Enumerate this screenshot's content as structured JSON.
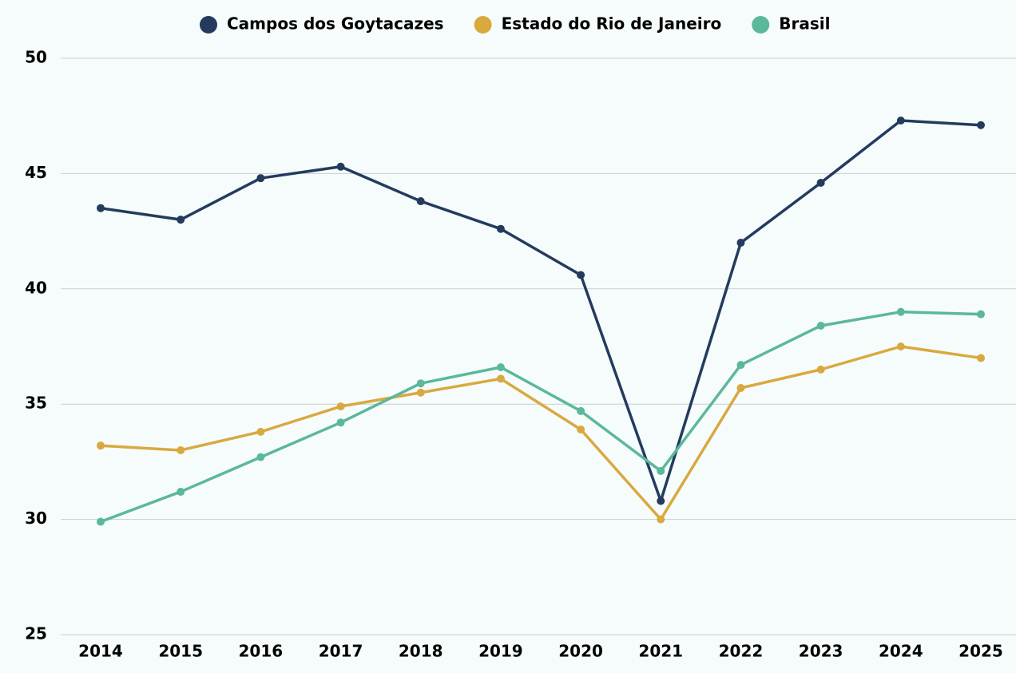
{
  "chart_data": {
    "type": "line",
    "categories": [
      "2014",
      "2015",
      "2016",
      "2017",
      "2018",
      "2019",
      "2020",
      "2021",
      "2022",
      "2023",
      "2024",
      "2025"
    ],
    "series": [
      {
        "name": "Campos dos Goytacazes",
        "color": "#243b5e",
        "values": [
          43.5,
          43.0,
          44.8,
          45.3,
          43.8,
          42.6,
          40.6,
          30.8,
          42.0,
          44.6,
          47.3,
          47.1
        ]
      },
      {
        "name": "Estado do Rio de Janeiro",
        "color": "#d9a93f",
        "values": [
          33.2,
          33.0,
          33.8,
          34.9,
          35.5,
          36.1,
          33.9,
          30.0,
          35.7,
          36.5,
          37.5,
          37.0
        ]
      },
      {
        "name": "Brasil",
        "color": "#5bb89a",
        "values": [
          29.9,
          31.2,
          32.7,
          34.2,
          35.9,
          36.6,
          34.7,
          32.1,
          36.7,
          38.4,
          39.0,
          38.9
        ]
      }
    ],
    "ylim": [
      25,
      50
    ],
    "yticks": [
      25,
      30,
      35,
      40,
      45,
      50
    ],
    "grid": true,
    "legend": "top"
  }
}
